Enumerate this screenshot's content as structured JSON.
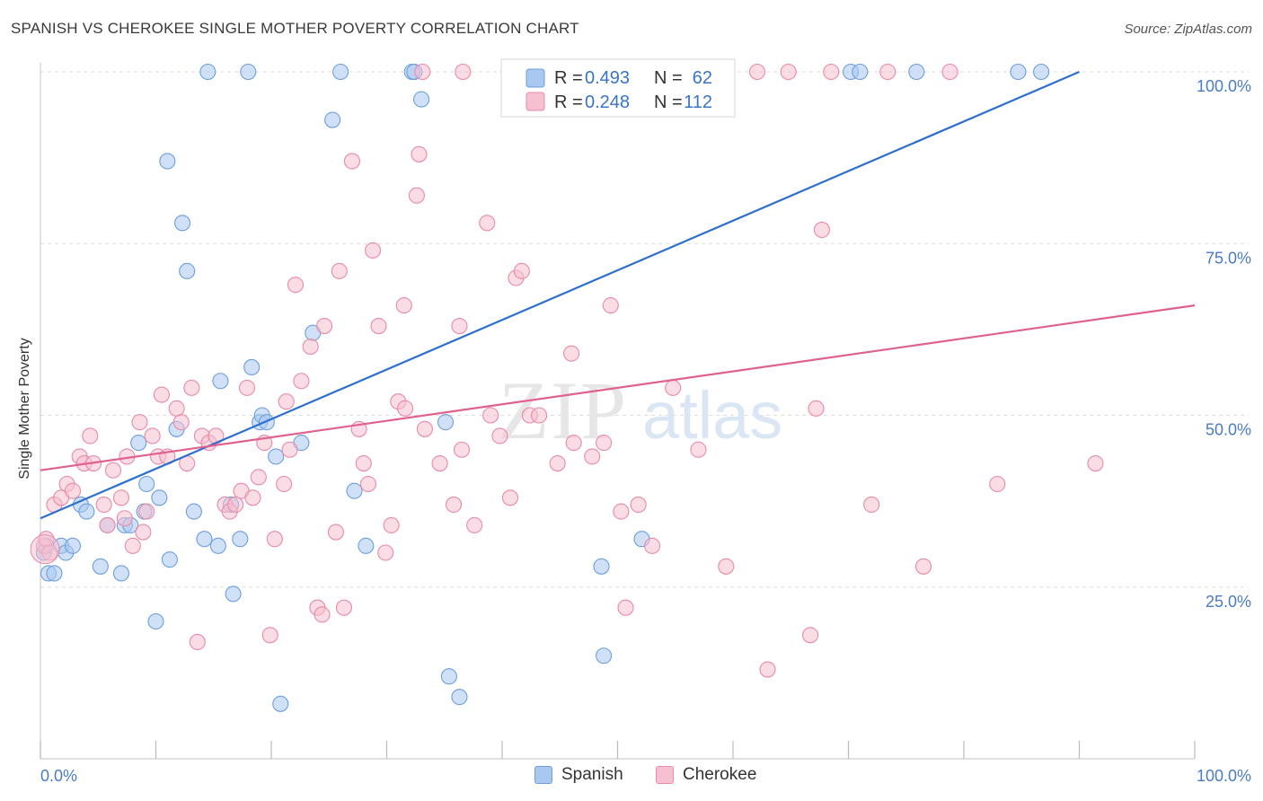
{
  "title": "SPANISH VS CHEROKEE SINGLE MOTHER POVERTY CORRELATION CHART",
  "source": "Source: ZipAtlas.com",
  "watermark": {
    "zip": "ZIP",
    "atlas": "atlas"
  },
  "colors": {
    "spanish_fill": "#a9c8f0",
    "spanish_stroke": "#6c9fdc",
    "spanish_line": "#2c6fcf",
    "cherokee_fill": "#f6c0d0",
    "cherokee_stroke": "#e88aa8",
    "cherokee_line": "#e0608e",
    "tick_label": "#4a7cc4",
    "grid": "#dddddd"
  },
  "legend": {
    "rows": [
      {
        "series": "Spanish",
        "r_label": "R =",
        "r_value": "0.493",
        "n_label": "N =",
        "n_value": "62"
      },
      {
        "series": "Cherokee",
        "r_label": "R =",
        "r_value": "0.248",
        "n_label": "N =",
        "n_value": "112"
      }
    ]
  },
  "chart_data": {
    "type": "scatter",
    "title": "SPANISH VS CHEROKEE SINGLE MOTHER POVERTY CORRELATION CHART",
    "xlabel": "",
    "ylabel": "Single Mother Poverty",
    "xlim": [
      0,
      100
    ],
    "ylim": [
      0,
      102
    ],
    "x_tick_labels": [
      "0.0%",
      "100.0%"
    ],
    "y_ticks": [
      25,
      50,
      75,
      100
    ],
    "y_tick_labels": [
      "25.0%",
      "50.0%",
      "75.0%",
      "100.0%"
    ],
    "grid": true,
    "legend_position": "top-center",
    "series": [
      {
        "name": "Spanish",
        "r": 0.493,
        "n": 62,
        "trend": {
          "x": [
            0,
            90
          ],
          "y": [
            35,
            100
          ]
        },
        "points": [
          [
            0.3,
            30
          ],
          [
            0.5,
            31
          ],
          [
            0.7,
            27
          ],
          [
            1.2,
            27
          ],
          [
            1.8,
            31
          ],
          [
            2.2,
            30
          ],
          [
            2.8,
            31
          ],
          [
            3.5,
            37
          ],
          [
            4,
            36
          ],
          [
            5.2,
            28
          ],
          [
            5.8,
            34
          ],
          [
            7,
            27
          ],
          [
            7.3,
            34
          ],
          [
            7.8,
            34
          ],
          [
            8.5,
            46
          ],
          [
            9,
            36
          ],
          [
            9.2,
            40
          ],
          [
            10,
            20
          ],
          [
            10.3,
            38
          ],
          [
            11,
            87
          ],
          [
            11.2,
            29
          ],
          [
            11.8,
            48
          ],
          [
            12.3,
            78
          ],
          [
            12.7,
            71
          ],
          [
            13.3,
            36
          ],
          [
            14.2,
            32
          ],
          [
            15.4,
            31
          ],
          [
            15.6,
            55
          ],
          [
            16.5,
            37
          ],
          [
            16.7,
            24
          ],
          [
            17.3,
            32
          ],
          [
            18.3,
            57
          ],
          [
            19,
            49
          ],
          [
            19.2,
            50
          ],
          [
            19.6,
            49
          ],
          [
            20.4,
            44
          ],
          [
            20.8,
            8
          ],
          [
            22.6,
            46
          ],
          [
            23.6,
            62
          ],
          [
            25.3,
            93
          ],
          [
            26,
            100
          ],
          [
            27.2,
            39
          ],
          [
            28.2,
            31
          ],
          [
            32.2,
            100
          ],
          [
            32.4,
            100
          ],
          [
            33,
            96
          ],
          [
            35.1,
            49
          ],
          [
            35.4,
            12
          ],
          [
            36.3,
            9
          ],
          [
            46.5,
            100
          ],
          [
            48.6,
            28
          ],
          [
            48.8,
            15
          ],
          [
            51.4,
            100
          ],
          [
            52.1,
            32
          ],
          [
            57.5,
            100
          ],
          [
            70.2,
            100
          ],
          [
            71,
            100
          ],
          [
            75.9,
            100
          ],
          [
            84.7,
            100
          ],
          [
            86.7,
            100
          ],
          [
            18,
            100
          ],
          [
            14.5,
            100
          ]
        ]
      },
      {
        "name": "Cherokee",
        "r": 0.248,
        "n": 112,
        "trend": {
          "x": [
            0,
            100
          ],
          "y": [
            42,
            66
          ]
        },
        "points": [
          [
            0.3,
            31
          ],
          [
            0.5,
            32
          ],
          [
            0.8,
            30
          ],
          [
            1.2,
            37
          ],
          [
            1.8,
            38
          ],
          [
            2.3,
            40
          ],
          [
            2.8,
            39
          ],
          [
            3.4,
            44
          ],
          [
            3.8,
            43
          ],
          [
            4.3,
            47
          ],
          [
            4.6,
            43
          ],
          [
            5.5,
            37
          ],
          [
            5.8,
            34
          ],
          [
            6.3,
            42
          ],
          [
            7,
            38
          ],
          [
            7.3,
            35
          ],
          [
            7.5,
            44
          ],
          [
            8,
            31
          ],
          [
            8.6,
            49
          ],
          [
            8.9,
            33
          ],
          [
            9.2,
            36
          ],
          [
            9.7,
            47
          ],
          [
            10.2,
            44
          ],
          [
            10.5,
            53
          ],
          [
            11,
            44
          ],
          [
            11.8,
            51
          ],
          [
            12.2,
            49
          ],
          [
            12.7,
            43
          ],
          [
            13.1,
            54
          ],
          [
            13.6,
            17
          ],
          [
            14,
            47
          ],
          [
            14.6,
            46
          ],
          [
            15.2,
            47
          ],
          [
            16,
            37
          ],
          [
            16.4,
            36
          ],
          [
            16.9,
            37
          ],
          [
            17.4,
            39
          ],
          [
            17.9,
            54
          ],
          [
            18.4,
            38
          ],
          [
            18.9,
            41
          ],
          [
            19.4,
            46
          ],
          [
            19.9,
            18
          ],
          [
            20.3,
            32
          ],
          [
            21.1,
            40
          ],
          [
            21.3,
            52
          ],
          [
            21.6,
            45
          ],
          [
            22.1,
            69
          ],
          [
            22.6,
            55
          ],
          [
            23.4,
            60
          ],
          [
            24,
            22
          ],
          [
            24.4,
            21
          ],
          [
            24.6,
            63
          ],
          [
            25.6,
            33
          ],
          [
            25.9,
            71
          ],
          [
            26.3,
            22
          ],
          [
            27,
            87
          ],
          [
            27.6,
            48
          ],
          [
            28,
            43
          ],
          [
            28.4,
            40
          ],
          [
            28.8,
            74
          ],
          [
            29.3,
            63
          ],
          [
            29.9,
            30
          ],
          [
            30.4,
            34
          ],
          [
            31,
            52
          ],
          [
            31.5,
            66
          ],
          [
            31.6,
            51
          ],
          [
            32.6,
            82
          ],
          [
            32.8,
            88
          ],
          [
            33.3,
            48
          ],
          [
            34.6,
            43
          ],
          [
            35.8,
            37
          ],
          [
            36.3,
            63
          ],
          [
            36.5,
            45
          ],
          [
            37.6,
            34
          ],
          [
            38.7,
            78
          ],
          [
            39,
            50
          ],
          [
            39.8,
            47
          ],
          [
            40.7,
            38
          ],
          [
            41.2,
            70
          ],
          [
            41.7,
            71
          ],
          [
            42.4,
            50
          ],
          [
            43.2,
            50
          ],
          [
            44.8,
            43
          ],
          [
            46,
            59
          ],
          [
            46.2,
            46
          ],
          [
            47.8,
            44
          ],
          [
            48.8,
            46
          ],
          [
            49.4,
            66
          ],
          [
            50.3,
            36
          ],
          [
            50.7,
            22
          ],
          [
            51.8,
            37
          ],
          [
            53,
            31
          ],
          [
            54.8,
            54
          ],
          [
            57,
            45
          ],
          [
            59.4,
            28
          ],
          [
            63,
            13
          ],
          [
            66.7,
            18
          ],
          [
            67.2,
            51
          ],
          [
            67.7,
            77
          ],
          [
            72,
            37
          ],
          [
            76.5,
            28
          ],
          [
            78.8,
            100
          ],
          [
            82.9,
            40
          ],
          [
            91.4,
            43
          ],
          [
            73.4,
            100
          ],
          [
            68.5,
            100
          ],
          [
            64.8,
            100
          ],
          [
            62.1,
            100
          ],
          [
            56.2,
            100
          ],
          [
            54.2,
            100
          ],
          [
            36.6,
            100
          ],
          [
            33.1,
            100
          ]
        ]
      }
    ]
  }
}
